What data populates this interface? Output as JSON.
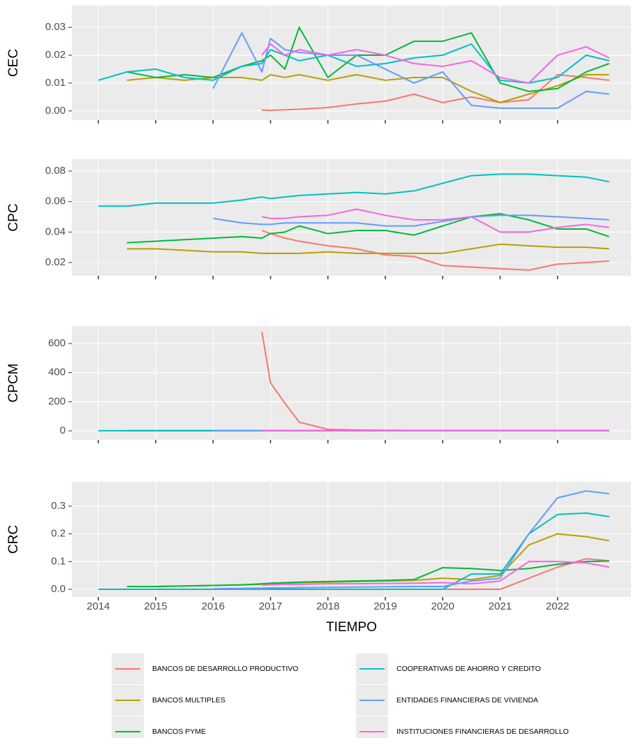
{
  "chart_data": [
    {
      "type": "line",
      "ylabel": "CEC",
      "x": [
        2014,
        2014.5,
        2015,
        2015.5,
        2016,
        2016.5,
        2016.85,
        2017,
        2017.25,
        2017.5,
        2018,
        2018.5,
        2019,
        2019.5,
        2020,
        2020.5,
        2021,
        2021.5,
        2022,
        2022.5,
        2022.9
      ],
      "xlim": [
        2013.54,
        2023.28
      ],
      "ylim": [
        -0.0033,
        0.0378
      ],
      "yticks": [
        {
          "value": 0,
          "label": "0.00"
        },
        {
          "value": 0.01,
          "label": "0.01"
        },
        {
          "value": 0.02,
          "label": "0.02"
        },
        {
          "value": 0.03,
          "label": "0.03"
        }
      ],
      "grid": true,
      "series": [
        {
          "name": "BANCOS DE DESARROLLO PRODUCTIVO",
          "color": "#F8766D",
          "values": [
            null,
            null,
            null,
            null,
            null,
            null,
            0.0003,
            0.0002,
            0.0004,
            0.0006,
            0.0012,
            0.0025,
            0.0035,
            0.006,
            0.003,
            0.005,
            0.003,
            0.004,
            0.013,
            0.012,
            0.011
          ]
        },
        {
          "name": "BANCOS MULTIPLES",
          "color": "#B79F00",
          "values": [
            null,
            0.011,
            0.012,
            0.011,
            0.012,
            0.012,
            0.011,
            0.013,
            0.012,
            0.013,
            0.011,
            0.013,
            0.011,
            0.012,
            0.012,
            0.007,
            0.003,
            0.006,
            0.009,
            0.013,
            0.013
          ]
        },
        {
          "name": "BANCOS PYME",
          "color": "#00BA38",
          "values": [
            null,
            0.014,
            0.012,
            0.013,
            0.012,
            0.016,
            0.018,
            0.02,
            0.015,
            0.03,
            0.012,
            0.02,
            0.02,
            0.025,
            0.025,
            0.028,
            0.01,
            0.007,
            0.008,
            0.014,
            0.017
          ]
        },
        {
          "name": "COOPERATIVAS DE AHORRO Y CREDITO",
          "color": "#00BFC4",
          "values": [
            0.011,
            0.014,
            0.015,
            0.012,
            0.011,
            0.016,
            0.017,
            0.022,
            0.02,
            0.018,
            0.02,
            0.016,
            0.017,
            0.019,
            0.02,
            0.024,
            0.011,
            0.01,
            0.012,
            0.02,
            0.018
          ]
        },
        {
          "name": "ENTIDADES FINANCIERAS DE VIVIENDA",
          "color": "#619CFF",
          "values": [
            null,
            null,
            null,
            null,
            0.008,
            0.028,
            0.014,
            0.026,
            0.022,
            0.021,
            0.02,
            0.02,
            0.015,
            0.01,
            0.014,
            0.002,
            0.001,
            0.001,
            0.001,
            0.007,
            0.006
          ]
        },
        {
          "name": "INSTITUCIONES FINANCIERAS DE DESARROLLO",
          "color": "#F564E3",
          "values": [
            null,
            null,
            null,
            null,
            null,
            null,
            0.02,
            0.024,
            0.02,
            0.022,
            0.02,
            0.022,
            0.02,
            0.017,
            0.016,
            0.018,
            0.012,
            0.01,
            0.02,
            0.023,
            0.019
          ]
        }
      ]
    },
    {
      "type": "line",
      "ylabel": "CPC",
      "x": [
        2014,
        2014.5,
        2015,
        2015.5,
        2016,
        2016.5,
        2016.85,
        2017,
        2017.25,
        2017.5,
        2018,
        2018.5,
        2019,
        2019.5,
        2020,
        2020.5,
        2021,
        2021.5,
        2022,
        2022.5,
        2022.9
      ],
      "xlim": [
        2013.54,
        2023.28
      ],
      "ylim": [
        0.0113,
        0.0878
      ],
      "yticks": [
        {
          "value": 0.02,
          "label": "0.02"
        },
        {
          "value": 0.04,
          "label": "0.04"
        },
        {
          "value": 0.06,
          "label": "0.06"
        },
        {
          "value": 0.08,
          "label": "0.08"
        }
      ],
      "grid": true,
      "series": [
        {
          "name": "BANCOS DE DESARROLLO PRODUCTIVO",
          "color": "#F8766D",
          "values": [
            null,
            null,
            null,
            null,
            null,
            null,
            0.041,
            0.039,
            0.036,
            0.034,
            0.031,
            0.029,
            0.025,
            0.024,
            0.018,
            0.017,
            0.016,
            0.015,
            0.019,
            0.02,
            0.021
          ]
        },
        {
          "name": "BANCOS MULTIPLES",
          "color": "#B79F00",
          "values": [
            null,
            0.029,
            0.029,
            0.028,
            0.027,
            0.027,
            0.026,
            0.026,
            0.026,
            0.026,
            0.027,
            0.026,
            0.026,
            0.026,
            0.026,
            0.029,
            0.032,
            0.031,
            0.03,
            0.03,
            0.029
          ]
        },
        {
          "name": "BANCOS PYME",
          "color": "#00BA38",
          "values": [
            null,
            0.033,
            0.034,
            0.035,
            0.036,
            0.037,
            0.036,
            0.039,
            0.04,
            0.044,
            0.039,
            0.041,
            0.041,
            0.038,
            0.044,
            0.05,
            0.052,
            0.048,
            0.042,
            0.042,
            0.037
          ]
        },
        {
          "name": "COOPERATIVAS DE AHORRO Y CREDITO",
          "color": "#00BFC4",
          "values": [
            0.057,
            0.057,
            0.059,
            0.059,
            0.059,
            0.061,
            0.063,
            0.062,
            0.063,
            0.064,
            0.065,
            0.066,
            0.065,
            0.067,
            0.072,
            0.077,
            0.078,
            0.078,
            0.077,
            0.076,
            0.073
          ]
        },
        {
          "name": "ENTIDADES FINANCIERAS DE VIVIENDA",
          "color": "#619CFF",
          "values": [
            null,
            null,
            null,
            null,
            0.049,
            0.046,
            0.045,
            0.045,
            0.046,
            0.046,
            0.046,
            0.046,
            0.044,
            0.044,
            0.047,
            0.05,
            0.051,
            0.051,
            0.05,
            0.049,
            0.048
          ]
        },
        {
          "name": "INSTITUCIONES FINANCIERAS DE DESARROLLO",
          "color": "#F564E3",
          "values": [
            null,
            null,
            null,
            null,
            null,
            null,
            0.05,
            0.049,
            0.049,
            0.05,
            0.051,
            0.055,
            0.051,
            0.048,
            0.048,
            0.05,
            0.04,
            0.04,
            0.043,
            0.045,
            0.043
          ]
        }
      ]
    },
    {
      "type": "line",
      "ylabel": "CPCM",
      "x": [
        2014,
        2014.5,
        2015,
        2015.5,
        2016,
        2016.5,
        2016.85,
        2017,
        2017.25,
        2017.5,
        2018,
        2018.5,
        2019,
        2019.5,
        2020,
        2020.5,
        2021,
        2021.5,
        2022,
        2022.5,
        2022.9
      ],
      "xlim": [
        2013.54,
        2023.28
      ],
      "ylim": [
        -62,
        720
      ],
      "yticks": [
        0,
        200,
        400,
        600
      ],
      "grid": true,
      "series": [
        {
          "name": "BANCOS DE DESARROLLO PRODUCTIVO",
          "color": "#F8766D",
          "values": [
            null,
            null,
            null,
            null,
            null,
            null,
            680,
            330,
            190,
            60,
            10,
            6,
            4,
            3,
            3,
            3,
            3,
            3,
            3,
            3,
            3
          ]
        },
        {
          "name": "BANCOS MULTIPLES",
          "color": "#B79F00",
          "values": [
            null,
            1,
            1,
            1,
            1,
            1,
            1,
            1,
            1,
            1,
            1,
            1,
            1,
            1,
            1,
            1,
            1,
            1,
            1,
            1,
            1
          ]
        },
        {
          "name": "BANCOS PYME",
          "color": "#00BA38",
          "values": [
            null,
            1,
            1,
            1,
            1,
            1,
            1,
            1,
            1,
            1,
            1,
            1,
            1,
            1,
            1,
            1,
            1,
            1,
            1,
            1,
            1
          ]
        },
        {
          "name": "COOPERATIVAS DE AHORRO Y CREDITO",
          "color": "#00BFC4",
          "values": [
            1,
            1,
            1,
            1,
            1,
            1,
            1,
            1,
            1,
            1,
            1,
            1,
            1,
            1,
            1,
            1,
            1,
            1,
            1,
            1,
            1
          ]
        },
        {
          "name": "ENTIDADES FINANCIERAS DE VIVIENDA",
          "color": "#619CFF",
          "values": [
            null,
            null,
            null,
            null,
            1,
            1,
            1,
            1,
            1,
            1,
            1,
            1,
            1,
            1,
            1,
            1,
            1,
            1,
            1,
            1,
            1
          ]
        },
        {
          "name": "INSTITUCIONES FINANCIERAS DE DESARROLLO",
          "color": "#F564E3",
          "values": [
            null,
            null,
            null,
            null,
            null,
            null,
            1,
            1,
            1,
            1,
            1,
            1,
            1,
            1,
            1,
            1,
            1,
            1,
            1,
            1,
            1
          ]
        }
      ]
    },
    {
      "type": "line",
      "ylabel": "CRC",
      "xlabel": "TIEMPO",
      "x": [
        2014,
        2014.5,
        2015,
        2015.5,
        2016,
        2016.5,
        2016.85,
        2017,
        2017.25,
        2017.5,
        2018,
        2018.5,
        2019,
        2019.5,
        2020,
        2020.5,
        2021,
        2021.5,
        2022,
        2022.5,
        2022.9
      ],
      "xlim": [
        2013.54,
        2023.28
      ],
      "ylim": [
        -0.0277,
        0.388
      ],
      "xticks": [
        2014,
        2015,
        2016,
        2017,
        2018,
        2019,
        2020,
        2021,
        2022
      ],
      "yticks": [
        {
          "value": 0,
          "label": "0.0"
        },
        {
          "value": 0.1,
          "label": "0.1"
        },
        {
          "value": 0.2,
          "label": "0.2"
        },
        {
          "value": 0.3,
          "label": "0.3"
        }
      ],
      "grid": true,
      "series": [
        {
          "name": "BANCOS DE DESARROLLO PRODUCTIVO",
          "color": "#F8766D",
          "values": [
            null,
            null,
            null,
            null,
            null,
            null,
            0,
            0,
            0,
            0,
            0,
            0,
            0,
            0,
            0,
            0,
            0,
            0.04,
            0.08,
            0.11,
            0.103
          ]
        },
        {
          "name": "BANCOS MULTIPLES",
          "color": "#B79F00",
          "values": [
            null,
            0.01,
            0.01,
            0.012,
            0.014,
            0.016,
            0.018,
            0.02,
            0.022,
            0.024,
            0.026,
            0.028,
            0.03,
            0.032,
            0.04,
            0.035,
            0.05,
            0.16,
            0.2,
            0.19,
            0.175
          ]
        },
        {
          "name": "BANCOS PYME",
          "color": "#00BA38",
          "values": [
            null,
            0.01,
            0.01,
            0.012,
            0.014,
            0.016,
            0.02,
            0.022,
            0.024,
            0.026,
            0.028,
            0.03,
            0.032,
            0.035,
            0.078,
            0.075,
            0.068,
            0.075,
            0.09,
            0.1,
            0.102
          ]
        },
        {
          "name": "COOPERATIVAS DE AHORRO Y CREDITO",
          "color": "#00BFC4",
          "values": [
            0,
            0,
            0,
            0,
            0,
            0,
            0,
            0,
            0,
            0,
            0,
            0,
            0,
            0,
            0,
            0.055,
            0.055,
            0.2,
            0.27,
            0.275,
            0.262
          ]
        },
        {
          "name": "ENTIDADES FINANCIERAS DE VIVIENDA",
          "color": "#619CFF",
          "values": [
            null,
            null,
            null,
            null,
            0.002,
            0.003,
            0.004,
            0.005,
            0.005,
            0.006,
            0.007,
            0.008,
            0.009,
            0.01,
            0.01,
            0.03,
            0.04,
            0.2,
            0.33,
            0.355,
            0.345
          ]
        },
        {
          "name": "INSTITUCIONES FINANCIERAS DE DESARROLLO",
          "color": "#F564E3",
          "values": [
            null,
            null,
            null,
            null,
            null,
            null,
            0.015,
            0.016,
            0.018,
            0.018,
            0.02,
            0.02,
            0.021,
            0.022,
            0.024,
            0.02,
            0.03,
            0.1,
            0.1,
            0.095,
            0.08
          ]
        }
      ]
    }
  ]
}
